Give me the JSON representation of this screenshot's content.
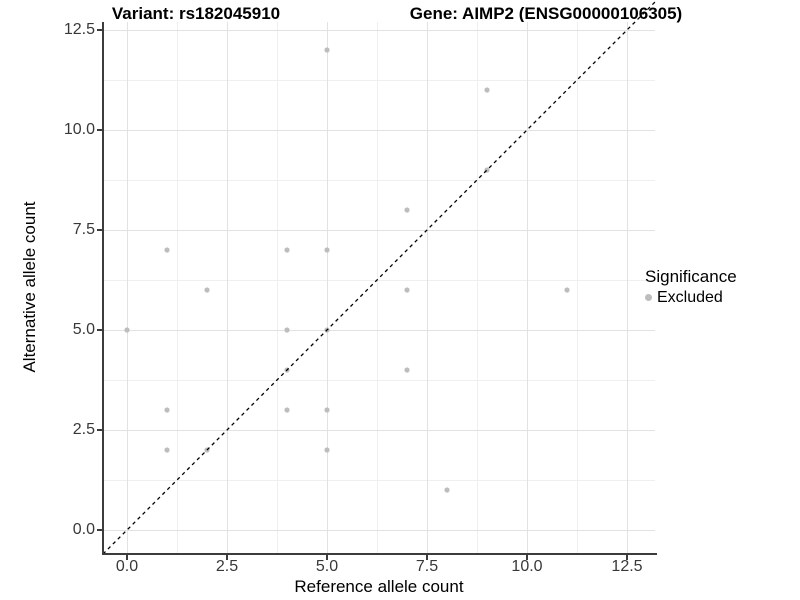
{
  "figure": {
    "title_left": "Variant: rs182045910",
    "title_right": "Gene: AIMP2 (ENSG00000106305)"
  },
  "chart_data": {
    "type": "scatter",
    "title_left": "Variant: rs182045910",
    "title_right": "Gene: AIMP2 (ENSG00000106305)",
    "xlabel": "Reference allele count",
    "ylabel": "Alternative allele count",
    "xlim": [
      -0.6,
      13.2
    ],
    "ylim": [
      -0.55,
      12.7
    ],
    "x_ticks": {
      "values": [
        0,
        2.5,
        5,
        7.5,
        10,
        12.5
      ],
      "labels": [
        "0.0",
        "2.5",
        "5.0",
        "7.5",
        "10.0",
        "12.5"
      ]
    },
    "y_ticks": {
      "values": [
        0,
        2.5,
        5,
        7.5,
        10,
        12.5
      ],
      "labels": [
        "0.0",
        "2.5",
        "5.0",
        "7.5",
        "10.0",
        "12.5"
      ]
    },
    "grid": true,
    "reference_line": {
      "slope": 1,
      "intercept": 0,
      "style": "dashed",
      "color": "#000000"
    },
    "series": [
      {
        "name": "Excluded",
        "color": "#bdbdbd",
        "points": [
          [
            0,
            5
          ],
          [
            1,
            2
          ],
          [
            1,
            3
          ],
          [
            1,
            7
          ],
          [
            2,
            2
          ],
          [
            2,
            6
          ],
          [
            4,
            3
          ],
          [
            4,
            4
          ],
          [
            4,
            5
          ],
          [
            4,
            7
          ],
          [
            5,
            2
          ],
          [
            5,
            3
          ],
          [
            5,
            5
          ],
          [
            5,
            7
          ],
          [
            5,
            12
          ],
          [
            7,
            4
          ],
          [
            7,
            6
          ],
          [
            7,
            8
          ],
          [
            8,
            1
          ],
          [
            9,
            9
          ],
          [
            9,
            11
          ],
          [
            11,
            6
          ]
        ]
      }
    ],
    "legend": {
      "title": "Significance",
      "position": "right",
      "items": [
        {
          "label": "Excluded",
          "color": "#bdbdbd"
        }
      ]
    }
  },
  "colors": {
    "point": "#bdbdbd",
    "grid_major": "#e2e2e2",
    "grid_minor": "#efefef",
    "axis": "#3c3c3c",
    "tick_label": "#383838"
  }
}
